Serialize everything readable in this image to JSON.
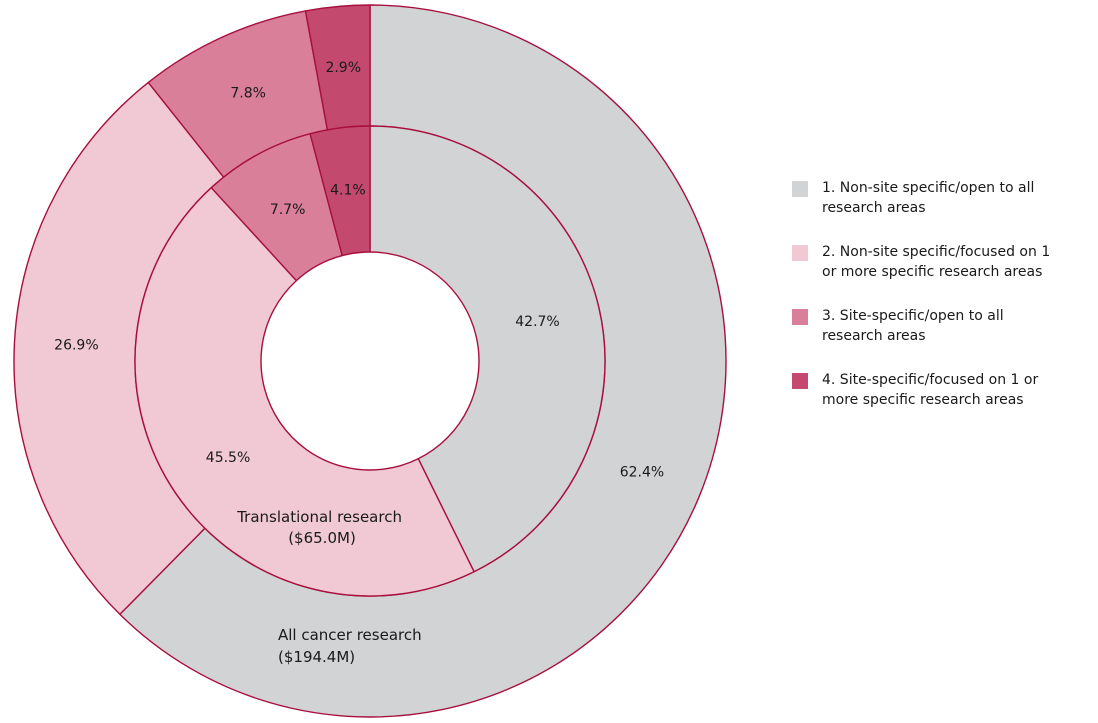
{
  "chart_data": {
    "type": "pie",
    "rings": [
      {
        "name": "Translational research ($65.0M)",
        "label_lines": [
          "Translational research",
          "($65.0M)"
        ],
        "slices": [
          42.7,
          45.5,
          7.7,
          4.1
        ],
        "labels": [
          "42.7%",
          "45.5%",
          "7.7%",
          "4.1%"
        ]
      },
      {
        "name": "All cancer research ($194.4M)",
        "label_lines": [
          "All cancer research",
          "($194.4M)"
        ],
        "slices": [
          62.4,
          26.9,
          7.8,
          2.9
        ],
        "labels": [
          "62.4%",
          "26.9%",
          "7.8%",
          "2.9%"
        ]
      }
    ],
    "categories": [
      "1. Non-site specific/open to all research areas",
      "2. Non-site specific/focused on 1 or more specific research areas",
      "3. Site-specific/open to all research areas",
      "4. Site-specific/focused on 1 or more specific research areas"
    ],
    "colors": [
      "#d1d3d4",
      "#f0c9d4",
      "#d97f99",
      "#c34a6e"
    ],
    "border_color": "#a80f3d",
    "legend_placement": "right"
  },
  "legend": {
    "items": [
      {
        "line1": "1. Non-site specific/open to all",
        "line2": "research areas",
        "color": "#d1d3d4"
      },
      {
        "line1": "2. Non-site specific/focused on 1",
        "line2": "or more specific research areas",
        "color": "#f0c9d4"
      },
      {
        "line1": "3. Site-specific/open to all",
        "line2": "research areas",
        "color": "#d97f99"
      },
      {
        "line1": "4. Site-specific/focused on 1 or",
        "line2": "more specific research areas",
        "color": "#c34a6e"
      }
    ]
  }
}
